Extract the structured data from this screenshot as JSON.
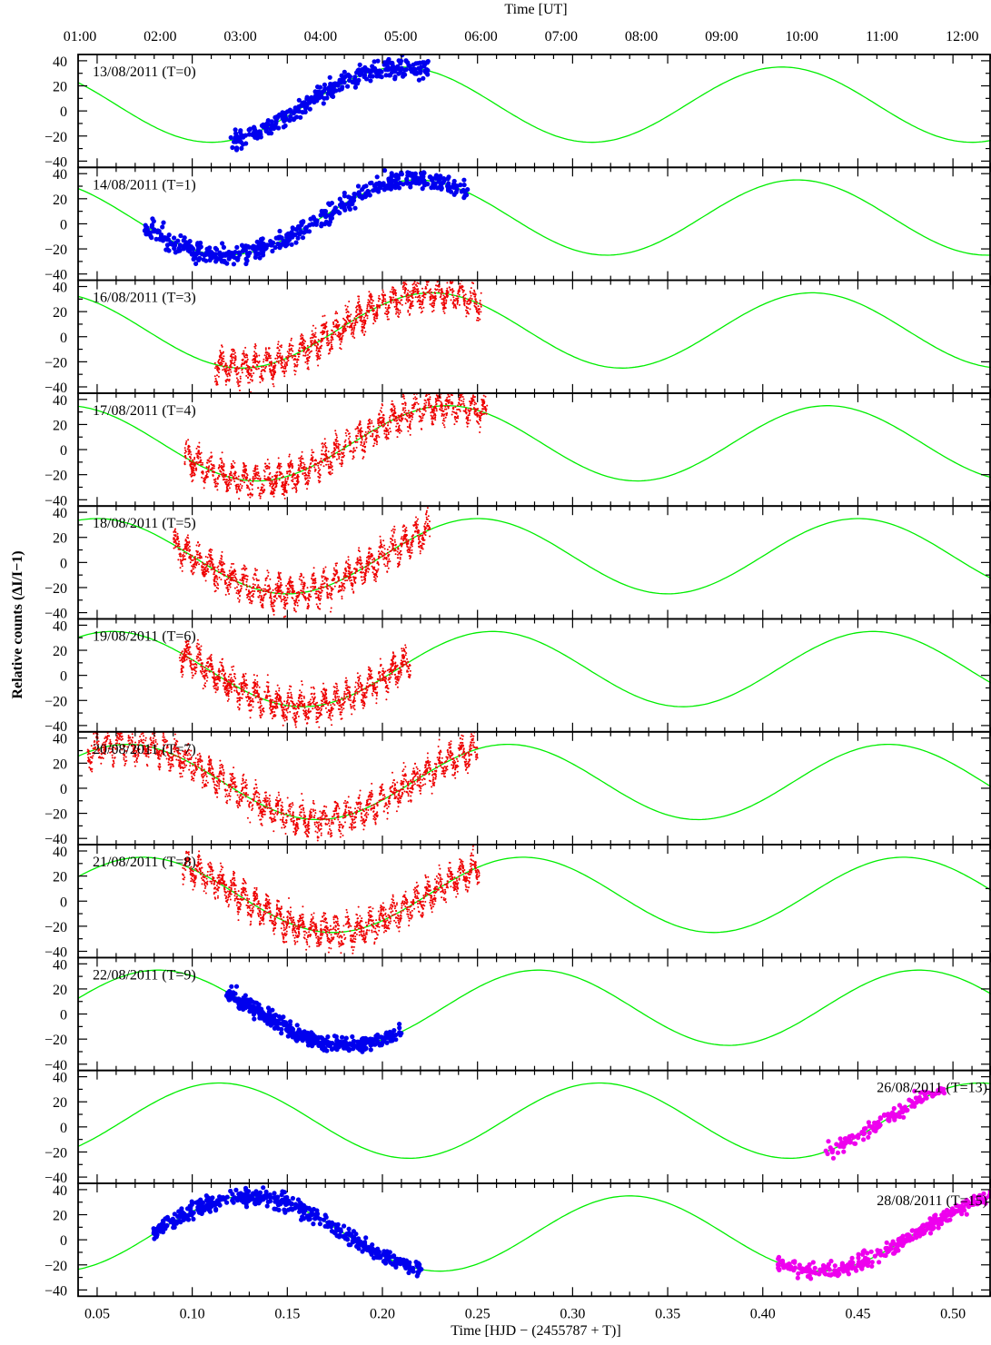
{
  "chart_data": {
    "type": "scatter",
    "top_axis": {
      "label": "Time [UT]",
      "ticks": [
        "01:00",
        "02:00",
        "03:00",
        "04:00",
        "05:00",
        "06:00",
        "07:00",
        "08:00",
        "09:00",
        "10:00",
        "11:00",
        "12:00"
      ]
    },
    "xlabel": "Time [HJD − (2455787 + T)]",
    "ylabel": "Relative counts (ΔI/I−1)",
    "xlim": [
      0.04,
      0.52
    ],
    "ylim": [
      -45,
      45
    ],
    "xticks": [
      {
        "v": 0.05,
        "t": "0.05"
      },
      {
        "v": 0.1,
        "t": "0.10"
      },
      {
        "v": 0.15,
        "t": "0.15"
      },
      {
        "v": 0.2,
        "t": "0.20"
      },
      {
        "v": 0.25,
        "t": "0.25"
      },
      {
        "v": 0.3,
        "t": "0.30"
      },
      {
        "v": 0.35,
        "t": "0.35"
      },
      {
        "v": 0.4,
        "t": "0.40"
      },
      {
        "v": 0.45,
        "t": "0.45"
      },
      {
        "v": 0.5,
        "t": "0.50"
      }
    ],
    "yticks": [
      {
        "v": 40,
        "t": "40"
      },
      {
        "v": 20,
        "t": "20"
      },
      {
        "v": 0,
        "t": "0"
      },
      {
        "v": -20,
        "t": "−20"
      },
      {
        "v": -40,
        "t": "−40"
      }
    ],
    "model": {
      "amplitude": 30,
      "offset": 5,
      "period": 0.2,
      "color": "#00ee00"
    },
    "colors": {
      "blue": "#0000ee",
      "red": "#ee0000",
      "magenta": "#ee00ee",
      "model": "#00ee00"
    },
    "panels": [
      {
        "label": "13/08/2011 (T=0)",
        "label_pos": "left",
        "peak_x": 0.21,
        "segments": [
          {
            "color": "blue",
            "style": "dot",
            "x_start": 0.12,
            "x_end": 0.225,
            "spread": 10,
            "n": 330
          }
        ]
      },
      {
        "label": "14/08/2011 (T=1)",
        "label_pos": "left",
        "peak_x": 0.218,
        "segments": [
          {
            "color": "blue",
            "style": "dot",
            "x_start": 0.075,
            "x_end": 0.245,
            "spread": 10,
            "n": 520
          }
        ]
      },
      {
        "label": "16/08/2011 (T=3)",
        "label_pos": "left",
        "peak_x": 0.226,
        "segments": [
          {
            "color": "red",
            "style": "fine",
            "x_start": 0.112,
            "x_end": 0.252,
            "spread": 12,
            "n": 1600
          }
        ]
      },
      {
        "label": "17/08/2011 (T=4)",
        "label_pos": "left",
        "peak_x": 0.234,
        "segments": [
          {
            "color": "red",
            "style": "fine",
            "x_start": 0.096,
            "x_end": 0.255,
            "spread": 12,
            "n": 1700
          }
        ]
      },
      {
        "label": "18/08/2011 (T=5)",
        "label_pos": "left",
        "peak_x": 0.25,
        "segments": [
          {
            "color": "red",
            "style": "fine",
            "x_start": 0.09,
            "x_end": 0.225,
            "spread": 12,
            "n": 1500
          }
        ]
      },
      {
        "label": "19/08/2011 (T=6)",
        "label_pos": "left",
        "peak_x": 0.258,
        "segments": [
          {
            "color": "red",
            "style": "fine",
            "x_start": 0.093,
            "x_end": 0.215,
            "spread": 12,
            "n": 1400
          }
        ]
      },
      {
        "label": "20/08/2011 (T=7)",
        "label_pos": "left",
        "peak_x": 0.266,
        "segments": [
          {
            "color": "red",
            "style": "fine",
            "x_start": 0.045,
            "x_end": 0.25,
            "spread": 12,
            "n": 2000
          }
        ]
      },
      {
        "label": "21/08/2011 (T=8)",
        "label_pos": "left",
        "peak_x": 0.274,
        "segments": [
          {
            "color": "red",
            "style": "fine",
            "x_start": 0.095,
            "x_end": 0.251,
            "spread": 12,
            "n": 1700
          }
        ]
      },
      {
        "label": "22/08/2011 (T=9)",
        "label_pos": "left",
        "peak_x": 0.282,
        "segments": [
          {
            "color": "blue",
            "style": "dot",
            "x_start": 0.118,
            "x_end": 0.21,
            "spread": 8,
            "n": 400
          }
        ]
      },
      {
        "label": "26/08/2011 (T=13)",
        "label_pos": "right",
        "peak_x": 0.314,
        "segments": [
          {
            "color": "magenta",
            "style": "dot",
            "x_start": 0.433,
            "x_end": 0.496,
            "spread": 8,
            "n": 140
          }
        ]
      },
      {
        "label": "28/08/2011 (T=15)",
        "label_pos": "right",
        "peak_x": 0.33,
        "segments": [
          {
            "color": "blue",
            "style": "dot",
            "x_start": 0.078,
            "x_end": 0.222,
            "spread": 9,
            "n": 480
          },
          {
            "color": "magenta",
            "style": "dot",
            "x_start": 0.408,
            "x_end": 0.52,
            "spread": 8,
            "n": 320
          }
        ]
      }
    ]
  }
}
